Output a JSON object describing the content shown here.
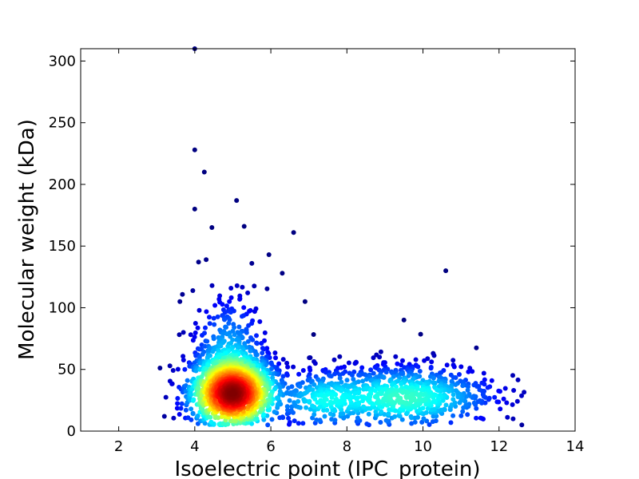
{
  "chart_data": {
    "type": "scatter",
    "title": "",
    "xlabel": "Isoelectric point (IPC_protein)",
    "ylabel": "Molecular weight (kDa)",
    "xlim": [
      1,
      14
    ],
    "ylim": [
      0,
      310
    ],
    "xticks": [
      2,
      4,
      6,
      8,
      10,
      12,
      14
    ],
    "yticks": [
      0,
      50,
      100,
      150,
      200,
      250,
      300
    ],
    "grid": false,
    "legend": "none",
    "colormap": "density (blue low to red high)",
    "colors": {
      "low": "#0000a0",
      "mid": "#00e0ff",
      "high": "#ff0000"
    },
    "outliers": [
      {
        "x": 4.0,
        "y": 310
      },
      {
        "x": 4.0,
        "y": 228
      },
      {
        "x": 4.25,
        "y": 210
      },
      {
        "x": 5.1,
        "y": 187
      },
      {
        "x": 4.0,
        "y": 180
      },
      {
        "x": 4.45,
        "y": 165
      },
      {
        "x": 5.3,
        "y": 166
      },
      {
        "x": 6.6,
        "y": 161
      },
      {
        "x": 5.95,
        "y": 143
      },
      {
        "x": 4.3,
        "y": 139
      },
      {
        "x": 4.1,
        "y": 137
      },
      {
        "x": 5.5,
        "y": 136
      },
      {
        "x": 10.6,
        "y": 130
      },
      {
        "x": 6.3,
        "y": 128
      },
      {
        "x": 6.9,
        "y": 105
      },
      {
        "x": 9.5,
        "y": 90
      },
      {
        "x": 12.6,
        "y": 5
      },
      {
        "x": 12.2,
        "y": 23
      },
      {
        "x": 3.2,
        "y": 12
      },
      {
        "x": 3.7,
        "y": 80
      }
    ],
    "clusters": [
      {
        "cx": 5.0,
        "cy": 30,
        "sx": 0.55,
        "sy": 14,
        "n": 1500
      },
      {
        "cx": 4.9,
        "cy": 60,
        "sx": 0.5,
        "sy": 25,
        "n": 300
      },
      {
        "cx": 9.5,
        "cy": 27,
        "sx": 1.2,
        "sy": 13,
        "n": 700
      },
      {
        "cx": 7.3,
        "cy": 25,
        "sx": 0.6,
        "sy": 12,
        "n": 200
      }
    ]
  }
}
